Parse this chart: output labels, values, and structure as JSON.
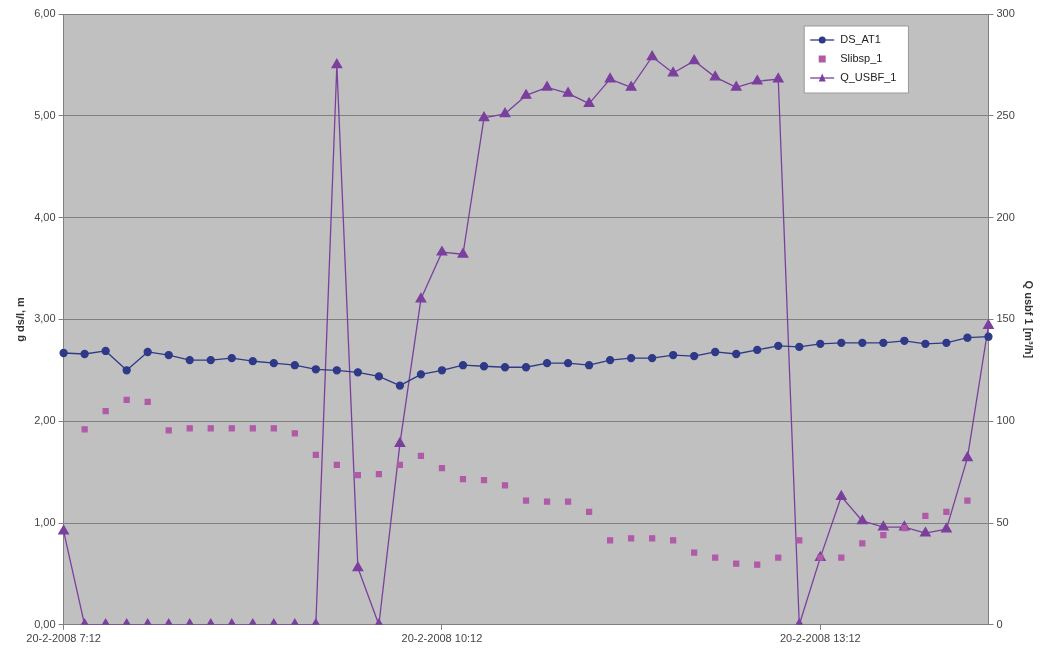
{
  "chart_data": {
    "type": "line",
    "xlabel": null,
    "ylabel": "g ds/l, m",
    "y2label": "Q usbf 1 [m³/h]",
    "categories": [
      "20-2-2008 7:12",
      null,
      null,
      null,
      null,
      null,
      null,
      null,
      null,
      null,
      null,
      null,
      null,
      null,
      null,
      null,
      null,
      null,
      "20-2-2008 10:12",
      null,
      null,
      null,
      null,
      null,
      null,
      null,
      null,
      null,
      null,
      null,
      null,
      null,
      null,
      null,
      null,
      null,
      "20-2-2008 13:12",
      null,
      null,
      null,
      null,
      null,
      null,
      null,
      null
    ],
    "series": [
      {
        "name": "DS_AT1",
        "color": "#2e3a87",
        "marker": "circle",
        "values": [
          2.67,
          2.66,
          2.69,
          2.5,
          2.68,
          2.65,
          2.6,
          2.6,
          2.62,
          2.59,
          2.57,
          2.55,
          2.51,
          2.5,
          2.48,
          2.44,
          2.35,
          2.46,
          2.5,
          2.55,
          2.54,
          2.53,
          2.53,
          2.57,
          2.57,
          2.55,
          2.6,
          2.62,
          2.62,
          2.65,
          2.64,
          2.68,
          2.66,
          2.7,
          2.74,
          2.73,
          2.76,
          2.77,
          2.77,
          2.77,
          2.79,
          2.76,
          2.77,
          2.82,
          2.83
        ]
      },
      {
        "name": "Slibsp_1",
        "color": "#b05aa8",
        "type": "scatter",
        "marker": "square",
        "values": [
          null,
          1.92,
          2.1,
          2.21,
          2.19,
          1.91,
          1.93,
          1.93,
          1.93,
          1.93,
          1.93,
          1.88,
          1.67,
          1.57,
          1.47,
          1.48,
          1.57,
          1.66,
          1.54,
          1.43,
          1.42,
          1.37,
          1.22,
          1.21,
          1.21,
          1.11,
          0.83,
          0.85,
          0.85,
          0.83,
          0.71,
          0.66,
          0.6,
          0.59,
          0.66,
          0.83,
          0.66,
          0.66,
          0.8,
          0.88,
          0.95,
          1.07,
          1.11,
          1.22,
          null
        ]
      },
      {
        "name": "Q_USBF_1",
        "color": "#7b3f9e",
        "marker": "triangle",
        "axis": "y2",
        "values": [
          46,
          0,
          0,
          0,
          0,
          0,
          0,
          0,
          0,
          0,
          0,
          0,
          0,
          275,
          28,
          0,
          89,
          160,
          183,
          182,
          249,
          251,
          260,
          264,
          261,
          256,
          268,
          264,
          279,
          271,
          277,
          269,
          264,
          267,
          268,
          0,
          33,
          63,
          51,
          48,
          48,
          45,
          47,
          82,
          147
        ]
      }
    ],
    "ylim": [
      0,
      6
    ],
    "yticks": [
      {
        "value": 0,
        "label": "0,00"
      },
      {
        "value": 1,
        "label": "1,00"
      },
      {
        "value": 2,
        "label": "2,00"
      },
      {
        "value": 3,
        "label": "3,00"
      },
      {
        "value": 4,
        "label": "4,00"
      },
      {
        "value": 5,
        "label": "5,00"
      },
      {
        "value": 6,
        "label": "6,00"
      }
    ],
    "y2lim": [
      0,
      300
    ],
    "y2ticks": [
      0,
      50,
      100,
      150,
      200,
      250,
      300
    ],
    "grid": "y",
    "legend": "top right",
    "line_style": "solid"
  }
}
